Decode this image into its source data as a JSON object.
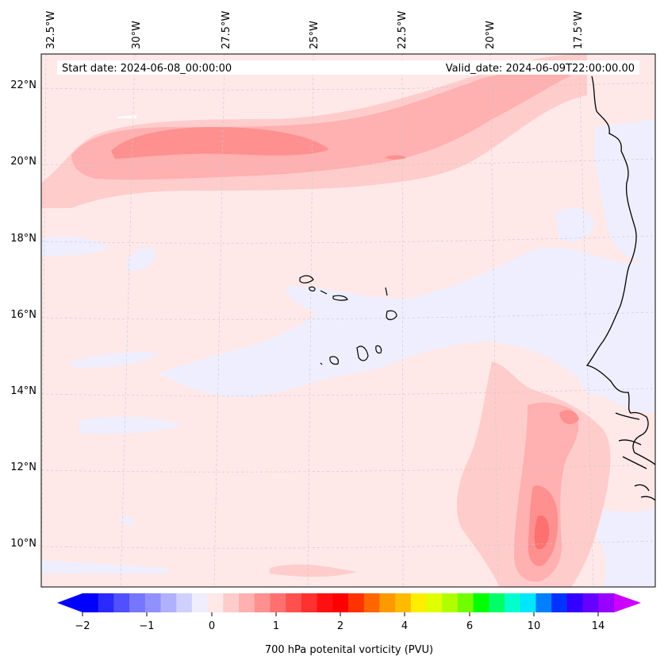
{
  "header": {
    "start_label": "Start date: 2024-06-08_00:00:00",
    "valid_label": "Valid_date: 2024-06-09T22:00:00.00"
  },
  "lon_labels": [
    "32.5°W",
    "30°W",
    "27.5°W",
    "25°W",
    "22.5°W",
    "20°W",
    "17.5°W"
  ],
  "lat_labels": [
    "22°N",
    "20°N",
    "18°N",
    "16°N",
    "14°N",
    "12°N",
    "10°N"
  ],
  "colorbar": {
    "label": "700 hPa potenital vorticity (PVU)",
    "tick_labels": [
      "−2",
      "−1",
      "0",
      "1",
      "2",
      "4",
      "6",
      "10",
      "14"
    ],
    "colors": [
      "#0000ff",
      "#2a2aff",
      "#5050ff",
      "#7676ff",
      "#9090ff",
      "#b0b0ff",
      "#d0d0ff",
      "#eeeeff",
      "#ffe8e8",
      "#ffcccc",
      "#ffb0b0",
      "#ff9090",
      "#ff7070",
      "#ff5050",
      "#ff3030",
      "#ff1010",
      "#ff0000",
      "#ff3300",
      "#ff6600",
      "#ff9900",
      "#ffbb00",
      "#ffee00",
      "#e0ff00",
      "#b0ff00",
      "#70ff00",
      "#00ff00",
      "#00ff66",
      "#00ffcc",
      "#00e6ff",
      "#0080ff",
      "#0033ff",
      "#3300ff",
      "#6600ff",
      "#9900ff"
    ],
    "extend_low_color": "#0000ff",
    "extend_high_color": "#cc00ff"
  },
  "colors": {
    "background_field": "#ffe8e8",
    "light_blue": "#eeeeff",
    "pink_1": "#ffcccc",
    "pink_2": "#ffb0b0",
    "pink_3": "#ff9090",
    "pink_4": "#ff7070"
  }
}
